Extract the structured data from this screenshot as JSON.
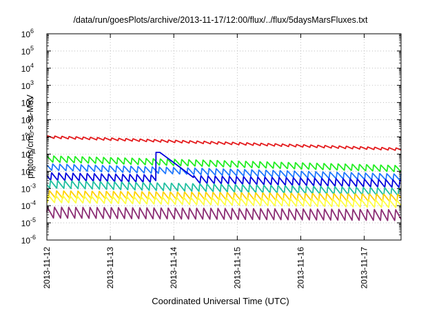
{
  "chart_data": {
    "type": "line",
    "title": "/data/run/goesPlots/archive/2013-11-17/12:00/flux/../flux/5daysMarsFluxes.txt",
    "xlabel": "Coordinated Universal Time (UTC)",
    "ylabel_prefix": "protons/cm",
    "ylabel_sup": "2",
    "ylabel_suffix": "-s-sr-MeV",
    "xlim_days": [
      0,
      5.58
    ],
    "x_ticks": [
      {
        "label": "2013-11-12",
        "day": 0
      },
      {
        "label": "2013-11-13",
        "day": 1
      },
      {
        "label": "2013-11-14",
        "day": 2
      },
      {
        "label": "2013-11-15",
        "day": 3
      },
      {
        "label": "2013-11-16",
        "day": 4
      },
      {
        "label": "2013-11-17",
        "day": 5
      }
    ],
    "yscale": "log",
    "ylim_exp": [
      -6,
      6
    ],
    "y_ticks": [
      {
        "base": "10",
        "exp": "6"
      },
      {
        "base": "10",
        "exp": "5"
      },
      {
        "base": "10",
        "exp": "4"
      },
      {
        "base": "10",
        "exp": "3"
      },
      {
        "base": "10",
        "exp": "2"
      },
      {
        "base": "10",
        "exp": "1"
      },
      {
        "base": "10",
        "exp": "0"
      },
      {
        "base": "10",
        "exp": "-1"
      },
      {
        "base": "10",
        "exp": "-2"
      },
      {
        "base": "10",
        "exp": "-3"
      },
      {
        "base": "10",
        "exp": "-4"
      },
      {
        "base": "10",
        "exp": "-5"
      },
      {
        "base": "10",
        "exp": "-6"
      }
    ],
    "grid": true,
    "series": [
      {
        "color": "#e41a1c",
        "start_log": 0.0,
        "end_log": -0.72,
        "amp": 0.14
      },
      {
        "color": "#22ee22",
        "start_log": -1.28,
        "end_log": -1.85,
        "amp": 0.38
      },
      {
        "color": "#1f78ff",
        "start_log": -1.75,
        "end_log": -2.35,
        "amp": 0.38
      },
      {
        "color": "#0000dd",
        "start_log": -2.3,
        "end_log": -2.72,
        "amp": 0.45,
        "spike": {
          "start_day": 1.72,
          "peak_day": 1.78,
          "end_day": 2.35,
          "peak_log": -0.9
        }
      },
      {
        "color": "#20c0a0",
        "start_log": -2.75,
        "end_log": -3.2,
        "amp": 0.45
      },
      {
        "color": "#ffd000",
        "start_log": -3.35,
        "end_log": -3.55,
        "amp": 0.45
      },
      {
        "color": "#ffff44",
        "start_log": -3.6,
        "end_log": -3.9,
        "amp": 0.45
      },
      {
        "color": "#8b2c73",
        "start_log": -4.4,
        "end_log": -4.55,
        "amp": 0.65
      }
    ],
    "oscillation_period_days": 0.112
  }
}
